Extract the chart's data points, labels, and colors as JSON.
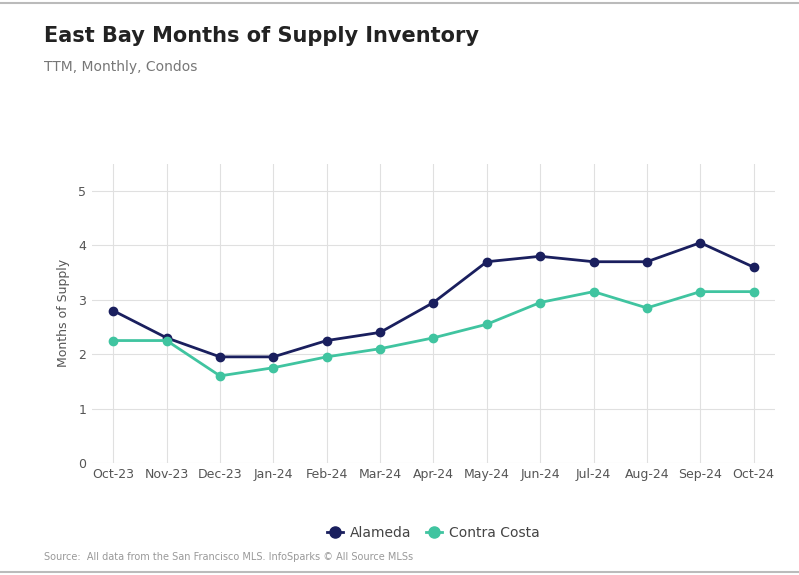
{
  "title": "East Bay Months of Supply Inventory",
  "subtitle": "TTM, Monthly, Condos",
  "ylabel": "Months of Supply",
  "source": "Source:  All data from the San Francisco MLS. InfoSparks © All Source MLSs",
  "months": [
    "Oct-23",
    "Nov-23",
    "Dec-23",
    "Jan-24",
    "Feb-24",
    "Mar-24",
    "Apr-24",
    "May-24",
    "Jun-24",
    "Jul-24",
    "Aug-24",
    "Sep-24",
    "Oct-24"
  ],
  "alameda": [
    2.8,
    2.3,
    1.95,
    1.95,
    2.25,
    2.4,
    2.95,
    3.7,
    3.8,
    3.7,
    3.7,
    4.05,
    3.6
  ],
  "contra_costa": [
    2.25,
    2.25,
    1.6,
    1.75,
    1.95,
    2.1,
    2.3,
    2.55,
    2.95,
    3.15,
    2.85,
    3.15,
    3.15
  ],
  "alameda_color": "#1a1f5e",
  "contra_costa_color": "#40c4a0",
  "ylim": [
    0,
    5.5
  ],
  "yticks": [
    0,
    1,
    2,
    3,
    4,
    5
  ],
  "background_color": "#ffffff",
  "grid_color": "#e0e0e0",
  "title_fontsize": 15,
  "subtitle_fontsize": 10,
  "tick_fontsize": 9,
  "legend_fontsize": 10,
  "ylabel_fontsize": 9,
  "line_width": 2.0,
  "marker_size": 6
}
